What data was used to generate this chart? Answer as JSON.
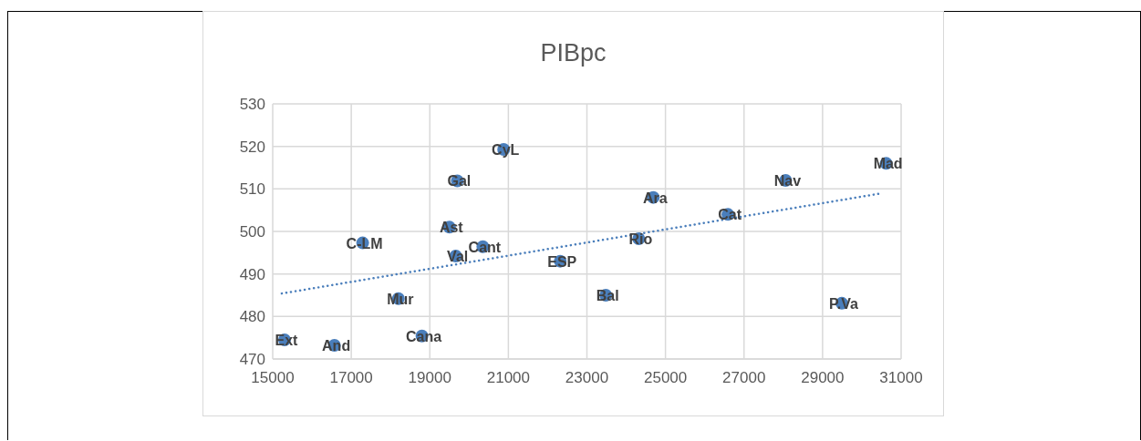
{
  "chart_data": {
    "type": "scatter",
    "title": "PIBpc",
    "series": [
      {
        "type": "scatter",
        "color": "#4a7ebb",
        "marker": "circle",
        "x": [
          15300,
          16570,
          17290,
          18200,
          18800,
          19500,
          19700,
          19660,
          20350,
          20880,
          22320,
          23480,
          24320,
          24690,
          26590,
          28060,
          29490,
          30620
        ],
        "values": [
          474.5,
          473.2,
          497.3,
          484.2,
          475.4,
          501,
          511.9,
          494.2,
          496.4,
          519.3,
          493,
          485,
          498.3,
          508,
          504,
          512,
          483.1,
          516
        ],
        "value_labels": [
          "Ext",
          "And",
          "C-LM",
          "Mur",
          "Cana",
          "Ast",
          "Gal",
          "Val",
          "Cant",
          "CyL",
          "ESP",
          "Bal",
          "Rio",
          "Ara",
          "Cat",
          "Nav",
          "P.Va",
          "Mad"
        ]
      },
      {
        "type": "line",
        "color": "#4a7ebb",
        "marker": "none",
        "line_style": "dotted",
        "x": [
          15230,
          30460
        ],
        "values": [
          485.4,
          508.9
        ]
      }
    ],
    "xlim": [
      15000,
      31000
    ],
    "xticks": [
      15000,
      17000,
      19000,
      21000,
      23000,
      25000,
      27000,
      29000,
      31000
    ],
    "ylim": [
      470,
      530
    ],
    "yticks": [
      470,
      480,
      490,
      500,
      510,
      520,
      530
    ],
    "grid": true,
    "legend": false
  }
}
